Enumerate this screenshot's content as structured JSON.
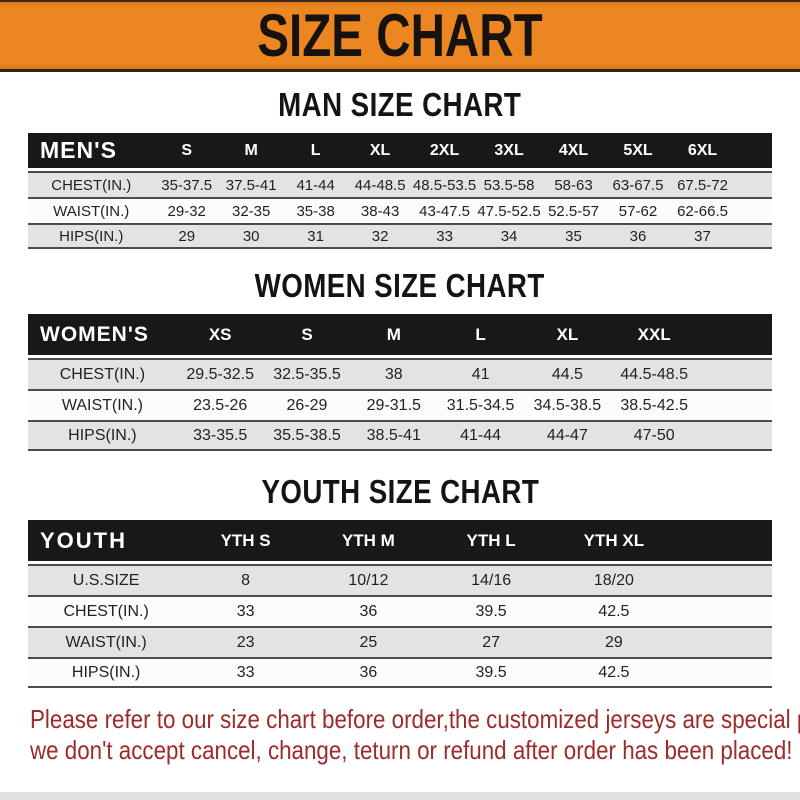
{
  "banner": {
    "title": "SIZE CHART"
  },
  "colors": {
    "banner_orange": "#ec8620",
    "header_black": "#181818",
    "row_gray": "#e3e3e3",
    "row_white": "#fcfcfc",
    "notice_red": "#9e2b2b"
  },
  "sections": [
    {
      "heading": "MAN SIZE CHART",
      "table": {
        "header_label": "MEN'S",
        "columns": [
          "S",
          "M",
          "L",
          "XL",
          "2XL",
          "3XL",
          "4XL",
          "5XL",
          "6XL"
        ],
        "rows": [
          {
            "label": "CHEST(IN.)",
            "values": [
              "35-37.5",
              "37.5-41",
              "41-44",
              "44-48.5",
              "48.5-53.5",
              "53.5-58",
              "58-63",
              "63-67.5",
              "67.5-72"
            ]
          },
          {
            "label": "WAIST(IN.)",
            "values": [
              "29-32",
              "32-35",
              "35-38",
              "38-43",
              "43-47.5",
              "47.5-52.5",
              "52.5-57",
              "57-62",
              "62-66.5"
            ]
          },
          {
            "label": "HIPS(IN.)",
            "values": [
              "29",
              "30",
              "31",
              "32",
              "33",
              "34",
              "35",
              "36",
              "37"
            ]
          }
        ]
      }
    },
    {
      "heading": "WOMEN SIZE CHART",
      "table": {
        "header_label": "WOMEN'S",
        "columns": [
          "XS",
          "S",
          "M",
          "L",
          "XL",
          "XXL"
        ],
        "rows": [
          {
            "label": "CHEST(IN.)",
            "values": [
              "29.5-32.5",
              "32.5-35.5",
              "38",
              "41",
              "44.5",
              "44.5-48.5"
            ]
          },
          {
            "label": "WAIST(IN.)",
            "values": [
              "23.5-26",
              "26-29",
              "29-31.5",
              "31.5-34.5",
              "34.5-38.5",
              "38.5-42.5"
            ]
          },
          {
            "label": "HIPS(IN.)",
            "values": [
              "33-35.5",
              "35.5-38.5",
              "38.5-41",
              "41-44",
              "44-47",
              "47-50"
            ]
          }
        ]
      }
    },
    {
      "heading": "YOUTH SIZE CHART",
      "table": {
        "header_label": "YOUTH",
        "columns": [
          "YTH S",
          "YTH M",
          "YTH L",
          "YTH XL"
        ],
        "rows": [
          {
            "label": "U.S.SIZE",
            "values": [
              "8",
              "10/12",
              "14/16",
              "18/20"
            ]
          },
          {
            "label": "CHEST(IN.)",
            "values": [
              "33",
              "36",
              "39.5",
              "42.5"
            ]
          },
          {
            "label": "WAIST(IN.)",
            "values": [
              "23",
              "25",
              "27",
              "29"
            ]
          },
          {
            "label": "HIPS(IN.)",
            "values": [
              "33",
              "36",
              "39.5",
              "42.5"
            ]
          }
        ]
      }
    }
  ],
  "footer": {
    "lines": [
      "Please refer to our size chart before order,the customized jerseys are special products,",
      "we don't accept cancel, change, teturn or refund after order has been placed!"
    ]
  }
}
